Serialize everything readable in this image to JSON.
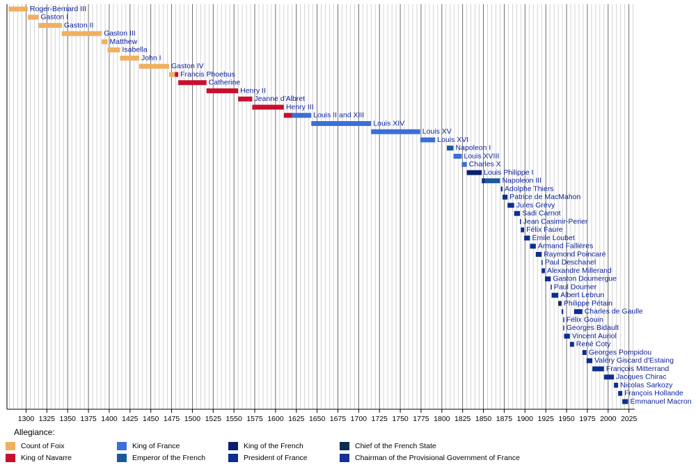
{
  "chart_data": {
    "type": "timeline",
    "xlim": [
      1277,
      2032
    ],
    "xticks": [
      1300,
      1325,
      1350,
      1375,
      1400,
      1425,
      1450,
      1475,
      1500,
      1525,
      1550,
      1575,
      1600,
      1625,
      1650,
      1675,
      1700,
      1725,
      1750,
      1775,
      1800,
      1825,
      1850,
      1875,
      1900,
      1925,
      1950,
      1975,
      2000,
      2025
    ],
    "minor_step": 5,
    "legend_title": "Allegiance:",
    "series": [
      {
        "name": "Count of Foix",
        "color": "#f0b060"
      },
      {
        "name": "King of Navarre",
        "color": "#c8102e"
      },
      {
        "name": "King of France",
        "color": "#3a6fd8"
      },
      {
        "name": "Emperor of the French",
        "color": "#1a5a9a"
      },
      {
        "name": "King of the French",
        "color": "#0a1f6e"
      },
      {
        "name": "President of France",
        "color": "#0c2f8f"
      },
      {
        "name": "Chief of the French State",
        "color": "#0c2d4e"
      },
      {
        "name": "Chairman of the Provisional Government of France",
        "color": "#14309a"
      }
    ],
    "rows": [
      {
        "label": "Roger-Bernard III",
        "segments": [
          {
            "start": 1279,
            "end": 1302,
            "series": 0
          }
        ]
      },
      {
        "label": "Gaston I",
        "segments": [
          {
            "start": 1302,
            "end": 1315,
            "series": 0
          }
        ]
      },
      {
        "label": "Gaston II",
        "segments": [
          {
            "start": 1315,
            "end": 1343,
            "series": 0
          }
        ]
      },
      {
        "label": "Gaston III",
        "segments": [
          {
            "start": 1343,
            "end": 1391,
            "series": 0
          }
        ]
      },
      {
        "label": "Matthew",
        "segments": [
          {
            "start": 1391,
            "end": 1398,
            "series": 0
          }
        ]
      },
      {
        "label": "Isabella",
        "segments": [
          {
            "start": 1398,
            "end": 1413,
            "series": 0
          }
        ]
      },
      {
        "label": "John I",
        "segments": [
          {
            "start": 1413,
            "end": 1436,
            "series": 0
          }
        ]
      },
      {
        "label": "Gaston IV",
        "segments": [
          {
            "start": 1436,
            "end": 1472,
            "series": 0
          }
        ]
      },
      {
        "label": "Francis Phoebus",
        "segments": [
          {
            "start": 1472,
            "end": 1479,
            "series": 0
          },
          {
            "start": 1479,
            "end": 1483,
            "series": 1
          }
        ]
      },
      {
        "label": "Catherine",
        "segments": [
          {
            "start": 1483,
            "end": 1517,
            "series": 1
          }
        ]
      },
      {
        "label": "Henry II",
        "segments": [
          {
            "start": 1517,
            "end": 1555,
            "series": 1
          }
        ]
      },
      {
        "label": "Jeanne d'Albret",
        "segments": [
          {
            "start": 1555,
            "end": 1572,
            "series": 1
          }
        ]
      },
      {
        "label": "Henry III",
        "segments": [
          {
            "start": 1572,
            "end": 1610,
            "series": 1
          }
        ]
      },
      {
        "label": "Louis II and XIII",
        "segments": [
          {
            "start": 1610,
            "end": 1620,
            "series": 1
          },
          {
            "start": 1620,
            "end": 1643,
            "series": 2
          }
        ]
      },
      {
        "label": "Louis XIV",
        "segments": [
          {
            "start": 1643,
            "end": 1715,
            "series": 2
          }
        ]
      },
      {
        "label": "Louis XV",
        "segments": [
          {
            "start": 1715,
            "end": 1774,
            "series": 2
          }
        ]
      },
      {
        "label": "Louis XVI",
        "segments": [
          {
            "start": 1774,
            "end": 1792,
            "series": 2
          }
        ]
      },
      {
        "label": "Napoleon I",
        "segments": [
          {
            "start": 1806,
            "end": 1814,
            "series": 3
          }
        ]
      },
      {
        "label": "Louis XVIII",
        "segments": [
          {
            "start": 1814,
            "end": 1824,
            "series": 2
          }
        ]
      },
      {
        "label": "Charles X",
        "segments": [
          {
            "start": 1824,
            "end": 1830,
            "series": 2
          }
        ]
      },
      {
        "label": "Louis Philippe I",
        "segments": [
          {
            "start": 1830,
            "end": 1848,
            "series": 4
          }
        ]
      },
      {
        "label": "Napoleon III",
        "segments": [
          {
            "start": 1848,
            "end": 1852,
            "series": 5
          },
          {
            "start": 1852,
            "end": 1870,
            "series": 3
          }
        ]
      },
      {
        "label": "Adolphe Thiers",
        "segments": [
          {
            "start": 1871,
            "end": 1873,
            "series": 5
          }
        ]
      },
      {
        "label": "Patrice de MacMahon",
        "segments": [
          {
            "start": 1873,
            "end": 1879,
            "series": 5
          }
        ]
      },
      {
        "label": "Jules Grévy",
        "segments": [
          {
            "start": 1879,
            "end": 1887,
            "series": 5
          }
        ]
      },
      {
        "label": "Sadi Carnot",
        "segments": [
          {
            "start": 1887,
            "end": 1894,
            "series": 5
          }
        ]
      },
      {
        "label": "Jean Casimir-Perier",
        "segments": [
          {
            "start": 1894,
            "end": 1895,
            "series": 5
          }
        ]
      },
      {
        "label": "Félix Faure",
        "segments": [
          {
            "start": 1895,
            "end": 1899,
            "series": 5
          }
        ]
      },
      {
        "label": "Émile Loubet",
        "segments": [
          {
            "start": 1899,
            "end": 1906,
            "series": 5
          }
        ]
      },
      {
        "label": "Armand Fallières",
        "segments": [
          {
            "start": 1906,
            "end": 1913,
            "series": 5
          }
        ]
      },
      {
        "label": "Raymond Poincaré",
        "segments": [
          {
            "start": 1913,
            "end": 1920,
            "series": 5
          }
        ]
      },
      {
        "label": "Paul Deschanel",
        "segments": [
          {
            "start": 1920,
            "end": 1920,
            "series": 5
          }
        ]
      },
      {
        "label": "Alexandre Millerand",
        "segments": [
          {
            "start": 1920,
            "end": 1924,
            "series": 5
          }
        ]
      },
      {
        "label": "Gaston Doumergue",
        "segments": [
          {
            "start": 1924,
            "end": 1931,
            "series": 5
          }
        ]
      },
      {
        "label": "Paul Doumer",
        "segments": [
          {
            "start": 1931,
            "end": 1932,
            "series": 5
          }
        ]
      },
      {
        "label": "Albert Lebrun",
        "segments": [
          {
            "start": 1932,
            "end": 1940,
            "series": 5
          }
        ]
      },
      {
        "label": "Philippe Pétain",
        "segments": [
          {
            "start": 1940,
            "end": 1944,
            "series": 6
          }
        ]
      },
      {
        "label": "Charles de Gaulle",
        "segments": [
          {
            "start": 1944,
            "end": 1946,
            "series": 7
          },
          {
            "start": 1959,
            "end": 1969,
            "series": 5
          }
        ]
      },
      {
        "label": "Félix Gouin",
        "segments": [
          {
            "start": 1946,
            "end": 1946,
            "series": 7
          }
        ]
      },
      {
        "label": "Georges Bidault",
        "segments": [
          {
            "start": 1946,
            "end": 1946,
            "series": 7
          }
        ]
      },
      {
        "label": "Vincent Auriol",
        "segments": [
          {
            "start": 1947,
            "end": 1954,
            "series": 5
          }
        ]
      },
      {
        "label": "René Coty",
        "segments": [
          {
            "start": 1954,
            "end": 1959,
            "series": 5
          }
        ]
      },
      {
        "label": "Georges Pompidou",
        "segments": [
          {
            "start": 1969,
            "end": 1974,
            "series": 5
          }
        ]
      },
      {
        "label": "Valéry Giscard d'Estaing",
        "segments": [
          {
            "start": 1974,
            "end": 1981,
            "series": 5
          }
        ]
      },
      {
        "label": "François Mitterrand",
        "segments": [
          {
            "start": 1981,
            "end": 1995,
            "series": 5
          }
        ]
      },
      {
        "label": "Jacques Chirac",
        "segments": [
          {
            "start": 1995,
            "end": 2007,
            "series": 5
          }
        ]
      },
      {
        "label": "Nicolas Sarkozy",
        "segments": [
          {
            "start": 2007,
            "end": 2012,
            "series": 5
          }
        ]
      },
      {
        "label": "François Hollande",
        "segments": [
          {
            "start": 2012,
            "end": 2017,
            "series": 5
          }
        ]
      },
      {
        "label": "Emmanuel Macron",
        "segments": [
          {
            "start": 2017,
            "end": 2024,
            "series": 5
          }
        ]
      }
    ]
  }
}
